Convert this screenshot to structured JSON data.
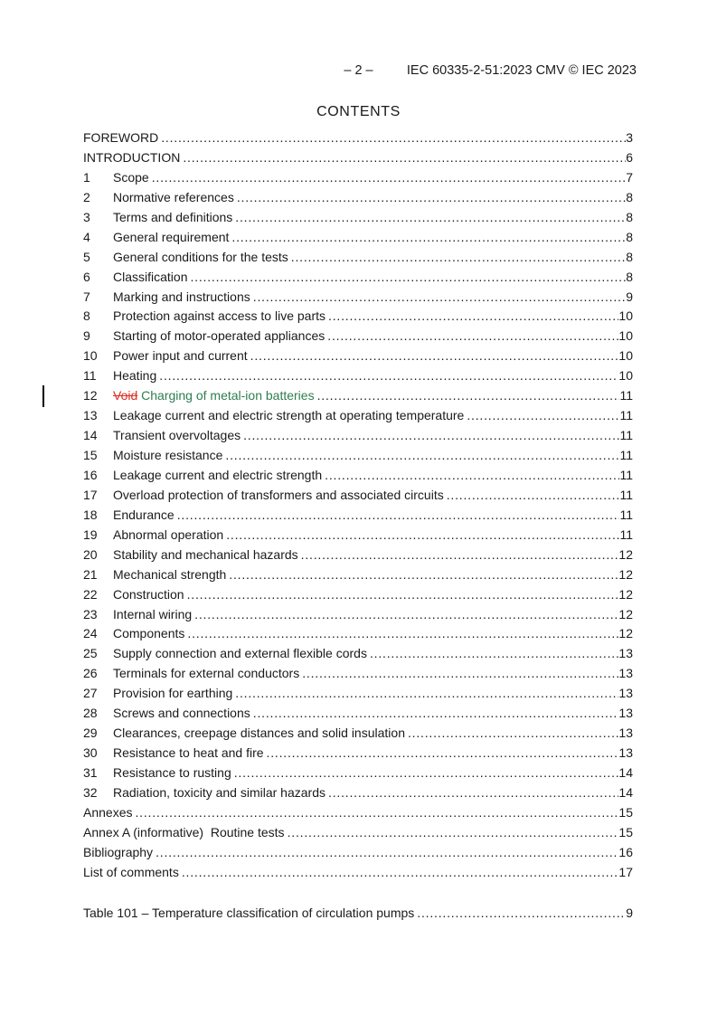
{
  "header": {
    "page_marker": "– 2 –",
    "doc_ref": "IEC 60335-2-51:2023 CMV © IEC 2023"
  },
  "title": "CONTENTS",
  "colors": {
    "deleted_red": "#d93025",
    "inserted_green": "#2e7d4e",
    "text": "#1a1a1a"
  },
  "toc": [
    {
      "label": "FOREWORD",
      "page": "3"
    },
    {
      "label": "INTRODUCTION",
      "page": "6"
    },
    {
      "num": "1",
      "label": "Scope",
      "page": "7"
    },
    {
      "num": "2",
      "label": "Normative references",
      "page": "8"
    },
    {
      "num": "3",
      "label": "Terms and definitions",
      "page": "8"
    },
    {
      "num": "4",
      "label": "General requirement",
      "page": "8"
    },
    {
      "num": "5",
      "label": "General conditions for the tests",
      "page": "8"
    },
    {
      "num": "6",
      "label": "Classification",
      "page": "8"
    },
    {
      "num": "7",
      "label": "Marking and instructions",
      "page": "9"
    },
    {
      "num": "8",
      "label": "Protection against access to live parts",
      "page": "10"
    },
    {
      "num": "9",
      "label": "Starting of motor-operated appliances",
      "page": "10"
    },
    {
      "num": "10",
      "label": "Power input and current",
      "page": "10"
    },
    {
      "num": "11",
      "label": "Heating",
      "page": "10"
    },
    {
      "num": "12",
      "deleted": "Void",
      "inserted": "Charging of metal-ion batteries",
      "page": "11",
      "changebar": true
    },
    {
      "num": "13",
      "label": "Leakage current and electric strength at operating temperature",
      "page": "11"
    },
    {
      "num": "14",
      "label": "Transient overvoltages",
      "page": "11"
    },
    {
      "num": "15",
      "label": "Moisture resistance",
      "page": "11"
    },
    {
      "num": "16",
      "label": "Leakage current and electric strength",
      "page": "11"
    },
    {
      "num": "17",
      "label": "Overload protection of transformers and associated circuits",
      "page": "11"
    },
    {
      "num": "18",
      "label": "Endurance",
      "page": "11"
    },
    {
      "num": "19",
      "label": "Abnormal operation",
      "page": "11"
    },
    {
      "num": "20",
      "label": "Stability and mechanical hazards",
      "page": "12"
    },
    {
      "num": "21",
      "label": "Mechanical strength",
      "page": "12"
    },
    {
      "num": "22",
      "label": "Construction",
      "page": "12"
    },
    {
      "num": "23",
      "label": "Internal wiring",
      "page": "12"
    },
    {
      "num": "24",
      "label": "Components",
      "page": "12"
    },
    {
      "num": "25",
      "label": "Supply connection and external flexible cords",
      "page": "13"
    },
    {
      "num": "26",
      "label": "Terminals for external conductors",
      "page": "13"
    },
    {
      "num": "27",
      "label": "Provision for earthing",
      "page": "13"
    },
    {
      "num": "28",
      "label": "Screws and connections",
      "page": "13"
    },
    {
      "num": "29",
      "label": "Clearances, creepage distances and solid insulation",
      "page": "13"
    },
    {
      "num": "30",
      "label": "Resistance to heat and fire",
      "page": "13"
    },
    {
      "num": "31",
      "label": "Resistance to rusting",
      "page": "14"
    },
    {
      "num": "32",
      "label": "Radiation, toxicity and similar hazards",
      "page": "14"
    },
    {
      "label": "Annexes",
      "page": "15"
    },
    {
      "label": "Annex A (informative)  Routine tests",
      "page": "15"
    },
    {
      "label": "Bibliography",
      "page": "16"
    },
    {
      "label": "List of comments",
      "page": "17"
    }
  ],
  "table_index": [
    {
      "label": "Table 101 – Temperature classification of circulation pumps",
      "page": "9"
    }
  ]
}
